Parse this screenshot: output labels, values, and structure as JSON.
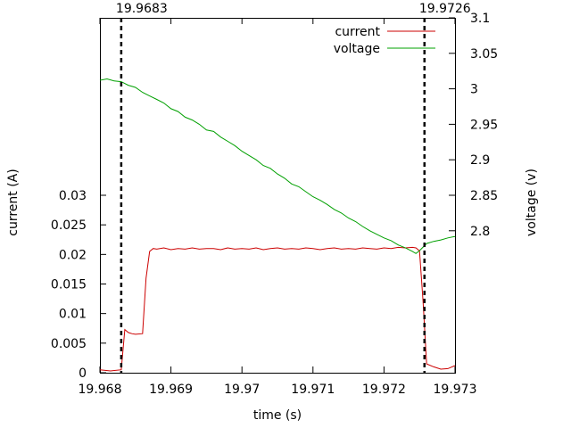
{
  "chart_data": {
    "type": "line",
    "title": "",
    "xlabel": "time (s)",
    "ylabel_left": "current (A)",
    "ylabel_right": "voltage (v)",
    "xlim": [
      19.968,
      19.973
    ],
    "ylim_left": [
      0,
      0.06
    ],
    "ylim_right": [
      2.6,
      3.1
    ],
    "x_ticks": [
      "19.968",
      "19.969",
      "19.97",
      "19.971",
      "19.972",
      "19.973"
    ],
    "y_left_ticks": [
      "0",
      "0.005",
      "0.01",
      "0.015",
      "0.02",
      "0.025",
      "0.03"
    ],
    "y_right_ticks": [
      "2.8",
      "2.85",
      "2.9",
      "2.95",
      "3",
      "3.05",
      "3.1"
    ],
    "grid": false,
    "legend_position": "top-right",
    "markers": [
      {
        "label": "19.9683",
        "x": 19.9683
      },
      {
        "label": "19.9726",
        "x": 19.97257
      }
    ],
    "series": [
      {
        "name": "current",
        "axis": "left",
        "color": "#cc0000",
        "x": [
          19.968,
          19.96815,
          19.9683,
          19.96835,
          19.9684,
          19.96845,
          19.9685,
          19.9686,
          19.96865,
          19.9687,
          19.96875,
          19.9688,
          19.9689,
          19.969,
          19.9691,
          19.9692,
          19.9693,
          19.9694,
          19.9695,
          19.9696,
          19.9697,
          19.9698,
          19.9699,
          19.97,
          19.9701,
          19.9702,
          19.9703,
          19.9704,
          19.9705,
          19.9706,
          19.9707,
          19.9708,
          19.9709,
          19.971,
          19.9711,
          19.9712,
          19.9713,
          19.9714,
          19.9715,
          19.9716,
          19.9717,
          19.9718,
          19.9719,
          19.972,
          19.9721,
          19.9722,
          19.9723,
          19.9724,
          19.97245,
          19.9725,
          19.97255,
          19.9726,
          19.9727,
          19.9728,
          19.9729,
          19.973
        ],
        "y": [
          0.0005,
          0.0003,
          0.0005,
          0.0073,
          0.0068,
          0.0066,
          0.0065,
          0.0066,
          0.016,
          0.0205,
          0.021,
          0.0209,
          0.0211,
          0.0208,
          0.021,
          0.0209,
          0.0211,
          0.0209,
          0.021,
          0.021,
          0.0208,
          0.0211,
          0.0209,
          0.021,
          0.0209,
          0.0211,
          0.0208,
          0.021,
          0.0211,
          0.0209,
          0.021,
          0.0209,
          0.0211,
          0.021,
          0.0208,
          0.021,
          0.0211,
          0.0209,
          0.021,
          0.0209,
          0.0211,
          0.021,
          0.0209,
          0.0211,
          0.021,
          0.0212,
          0.0211,
          0.0212,
          0.0211,
          0.0206,
          0.012,
          0.0015,
          0.001,
          0.0006,
          0.0007,
          0.0012
        ]
      },
      {
        "name": "voltage",
        "axis": "right",
        "color": "#00a000",
        "x": [
          19.968,
          19.9681,
          19.9682,
          19.9683,
          19.9684,
          19.9685,
          19.9686,
          19.9687,
          19.9688,
          19.9689,
          19.969,
          19.9691,
          19.9692,
          19.9693,
          19.9694,
          19.9695,
          19.9696,
          19.9697,
          19.9698,
          19.9699,
          19.97,
          19.9701,
          19.9702,
          19.9703,
          19.9704,
          19.9705,
          19.9706,
          19.9707,
          19.9708,
          19.9709,
          19.971,
          19.9711,
          19.9712,
          19.9713,
          19.9714,
          19.9715,
          19.9716,
          19.9717,
          19.9718,
          19.9719,
          19.972,
          19.9721,
          19.9722,
          19.9723,
          19.9724,
          19.97245,
          19.9725,
          19.9726,
          19.9727,
          19.9728,
          19.9729,
          19.973
        ],
        "y": [
          3.012,
          3.014,
          3.011,
          3.01,
          3.005,
          3.002,
          2.995,
          2.99,
          2.985,
          2.98,
          2.972,
          2.968,
          2.96,
          2.956,
          2.95,
          2.942,
          2.94,
          2.932,
          2.926,
          2.92,
          2.912,
          2.906,
          2.9,
          2.892,
          2.888,
          2.88,
          2.874,
          2.866,
          2.862,
          2.855,
          2.848,
          2.843,
          2.837,
          2.83,
          2.825,
          2.818,
          2.813,
          2.806,
          2.8,
          2.795,
          2.79,
          2.786,
          2.78,
          2.776,
          2.771,
          2.768,
          2.772,
          2.782,
          2.785,
          2.787,
          2.79,
          2.792
        ]
      }
    ]
  }
}
